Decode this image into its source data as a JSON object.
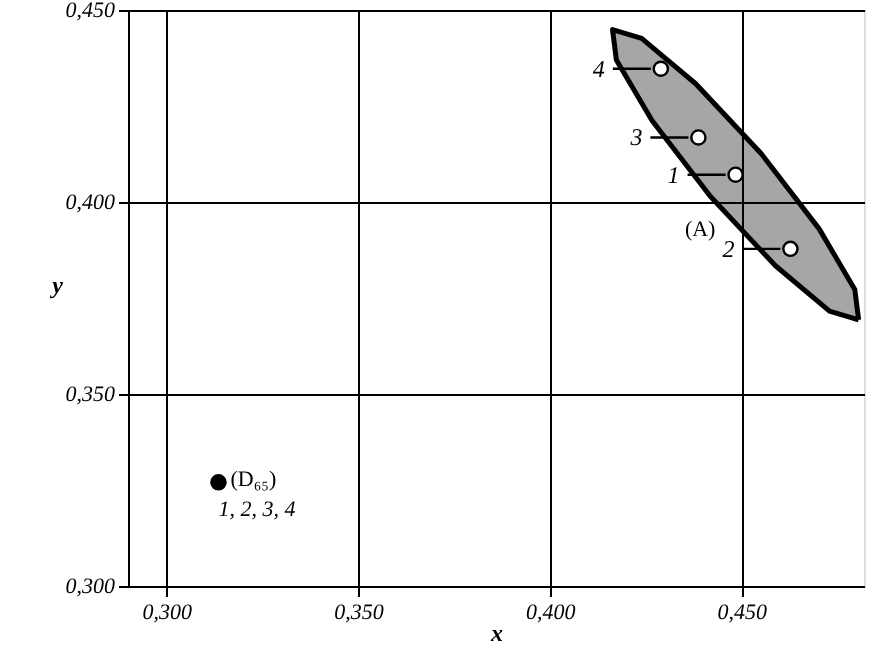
{
  "chart_data": {
    "type": "scatter",
    "xlabel": "x",
    "ylabel": "y",
    "xlim": [
      0.29,
      0.482
    ],
    "ylim": [
      0.3,
      0.45
    ],
    "xticks": [
      {
        "value": 0.3,
        "label": "0,300"
      },
      {
        "value": 0.35,
        "label": "0,350"
      },
      {
        "value": 0.4,
        "label": "0,400"
      },
      {
        "value": 0.45,
        "label": "0,450"
      }
    ],
    "yticks": [
      {
        "value": 0.3,
        "label": "0,300"
      },
      {
        "value": 0.35,
        "label": "0,350"
      },
      {
        "value": 0.4,
        "label": "0,400"
      },
      {
        "value": 0.45,
        "label": "0,450"
      }
    ],
    "grid": true,
    "marker": "circle",
    "series": [
      {
        "type": "area",
        "name": "(A)",
        "color": "#000000",
        "marker": "none",
        "x": [
          0.4806,
          0.4796,
          0.4703,
          0.4551,
          0.4381,
          0.424,
          0.4164,
          0.4174,
          0.4267,
          0.4419,
          0.4589,
          0.473,
          0.4806
        ],
        "values": [
          0.3693,
          0.3772,
          0.393,
          0.4127,
          0.4308,
          0.4426,
          0.4449,
          0.437,
          0.4212,
          0.4015,
          0.3834,
          0.3716,
          0.3693
        ]
      },
      {
        "name": "(D₆₅)",
        "color": "#000000",
        "x": [
          0.3136
        ],
        "values": [
          0.327
        ]
      },
      {
        "color": "#ffffff",
        "x": [
          0.4485,
          0.4628,
          0.4388,
          0.429
        ],
        "values": [
          0.4071,
          0.3878,
          0.4168,
          0.4347
        ]
      }
    ],
    "annotations": [
      {
        "text": "1",
        "x": 0.4485,
        "y": 0.4071
      },
      {
        "text": "2",
        "x": 0.4628,
        "y": 0.3878
      },
      {
        "text": "3",
        "x": 0.4388,
        "y": 0.4168
      },
      {
        "text": "4",
        "x": 0.429,
        "y": 0.4347
      },
      "1, 2, 3, 4"
    ]
  }
}
